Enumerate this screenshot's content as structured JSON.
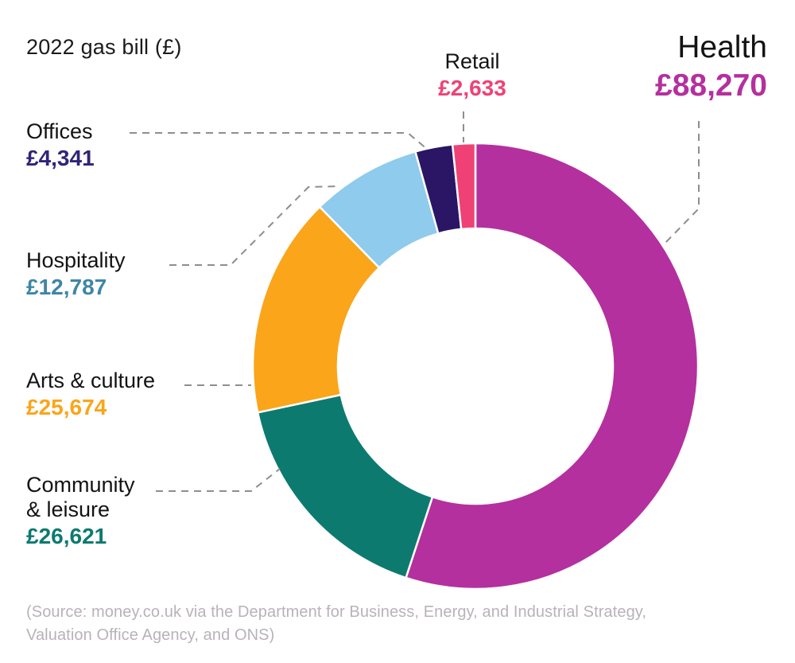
{
  "title": "2022 gas bill (£)",
  "source_note": {
    "line1": "(Source: money.co.uk via the Department for Business, Energy, and Industrial Strategy,",
    "line2": "Valuation Office Agency, and ONS)"
  },
  "chart_data": {
    "type": "pie",
    "subtype": "donut",
    "title": "2022 gas bill (£)",
    "currency": "GBP",
    "total": 160326,
    "start_angle_deg": 0,
    "direction": "clockwise",
    "legend_position": "callouts-with-dashed-leader-lines",
    "segments": [
      {
        "id": "health",
        "label": "Health",
        "value": 88270,
        "display_value": "£88,270",
        "color": "#b4309e",
        "label_color": "#b4309e"
      },
      {
        "id": "community-leisure",
        "label": "Community & leisure",
        "value": 26621,
        "display_value": "£26,621",
        "color": "#0d7a70",
        "label_color": "#0d7a70"
      },
      {
        "id": "arts-culture",
        "label": "Arts & culture",
        "value": 25674,
        "display_value": "£25,674",
        "color": "#faa51a",
        "label_color": "#faa51a"
      },
      {
        "id": "hospitality",
        "label": "Hospitality",
        "value": 12787,
        "display_value": "£12,787",
        "color": "#8ecbed",
        "label_color": "#3e86a6"
      },
      {
        "id": "offices",
        "label": "Offices",
        "value": 4341,
        "display_value": "£4,341",
        "color": "#2a1664",
        "label_color": "#2f2578"
      },
      {
        "id": "retail",
        "label": "Retail",
        "value": 2633,
        "display_value": "£2,633",
        "color": "#f04176",
        "label_color": "#f04176"
      }
    ]
  },
  "style": {
    "leader_line_color": "#8e8e8e",
    "separator_color": "#ffffff"
  }
}
